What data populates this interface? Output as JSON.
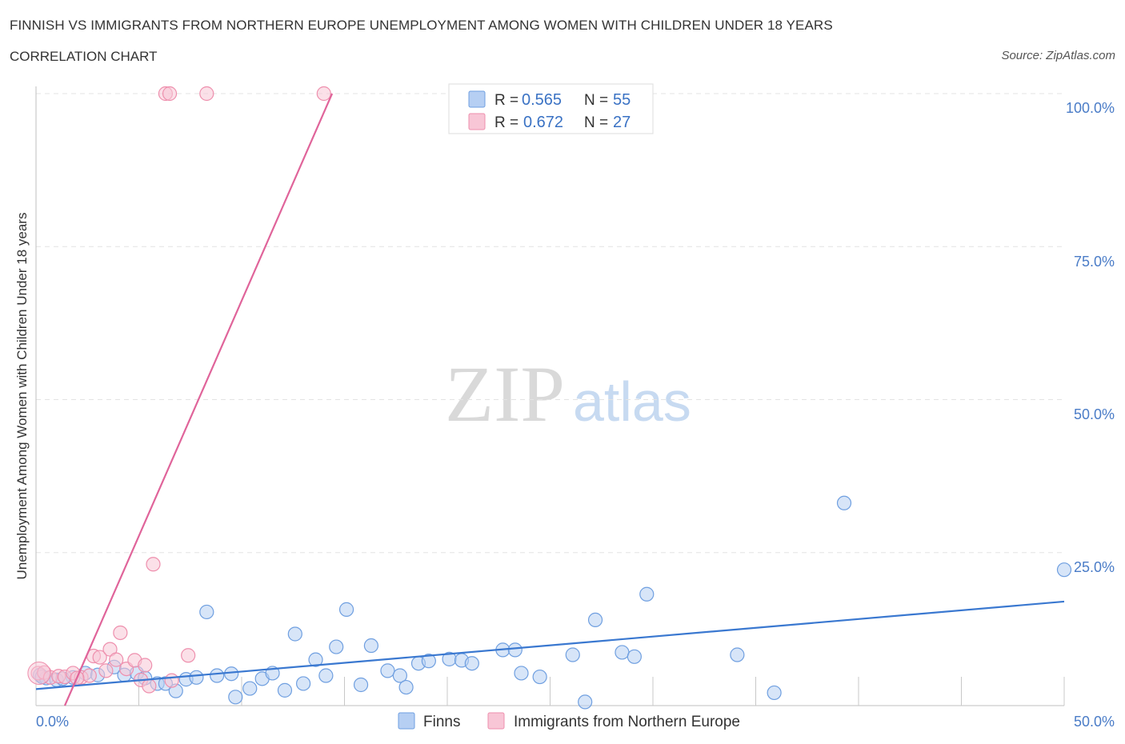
{
  "title": "FINNISH VS IMMIGRANTS FROM NORTHERN EUROPE UNEMPLOYMENT AMONG WOMEN WITH CHILDREN UNDER 18 YEARS",
  "subtitle": "CORRELATION CHART",
  "source": "Source: ZipAtlas.com",
  "watermark": {
    "zip": "ZIP",
    "atlas": "atlas"
  },
  "colors": {
    "finns": "#6f9fe0",
    "finns_line": "#3a78d0",
    "immigrants": "#ee8fad",
    "immigrants_line": "#e0649a",
    "tick": "#4a7cc7"
  },
  "legend": {
    "r_label": "R =",
    "n_label": "N =",
    "finns": {
      "r": "0.565",
      "n": "55"
    },
    "immigrants": {
      "r": "0.672",
      "n": "27"
    }
  },
  "chart_data": {
    "type": "scatter",
    "title": "FINNISH VS IMMIGRANTS FROM NORTHERN EUROPE UNEMPLOYMENT AMONG WOMEN WITH CHILDREN UNDER 18 YEARS",
    "xlabel": "",
    "ylabel": "Unemployment Among Women with Children Under 18 years",
    "xlim": [
      0,
      50
    ],
    "ylim": [
      0,
      100
    ],
    "x_tick_labels": [
      "0.0%",
      "50.0%"
    ],
    "y_tick_labels": [
      "100.0%",
      "75.0%",
      "50.0%",
      "25.0%"
    ],
    "y_ticks": [
      100,
      75,
      50,
      25
    ],
    "series": [
      {
        "name": "Finns",
        "points": [
          [
            0.2,
            5.0
          ],
          [
            0.5,
            4.5
          ],
          [
            1.0,
            4.2
          ],
          [
            1.8,
            4.6
          ],
          [
            2.4,
            5.3
          ],
          [
            3.0,
            5.0
          ],
          [
            3.8,
            6.3
          ],
          [
            4.3,
            5.0
          ],
          [
            4.9,
            5.3
          ],
          [
            5.3,
            4.5
          ],
          [
            5.9,
            3.6
          ],
          [
            6.3,
            3.6
          ],
          [
            6.8,
            2.4
          ],
          [
            7.3,
            4.3
          ],
          [
            7.8,
            4.6
          ],
          [
            8.3,
            15.3
          ],
          [
            8.8,
            4.9
          ],
          [
            9.5,
            5.2
          ],
          [
            9.7,
            1.4
          ],
          [
            10.4,
            2.8
          ],
          [
            11.0,
            4.4
          ],
          [
            11.5,
            5.3
          ],
          [
            12.1,
            2.5
          ],
          [
            12.6,
            11.7
          ],
          [
            13.0,
            3.6
          ],
          [
            13.6,
            7.5
          ],
          [
            14.1,
            4.9
          ],
          [
            14.6,
            9.6
          ],
          [
            15.1,
            15.7
          ],
          [
            15.8,
            3.4
          ],
          [
            16.3,
            9.8
          ],
          [
            17.1,
            5.7
          ],
          [
            17.7,
            4.9
          ],
          [
            18.0,
            3.0
          ],
          [
            18.6,
            6.9
          ],
          [
            19.1,
            7.3
          ],
          [
            20.1,
            7.6
          ],
          [
            20.7,
            7.4
          ],
          [
            21.2,
            6.9
          ],
          [
            22.7,
            9.1
          ],
          [
            23.3,
            9.1
          ],
          [
            23.6,
            5.3
          ],
          [
            24.5,
            4.7
          ],
          [
            26.1,
            8.3
          ],
          [
            26.7,
            0.6
          ],
          [
            27.2,
            14.0
          ],
          [
            28.5,
            8.7
          ],
          [
            29.1,
            8.0
          ],
          [
            29.7,
            18.2
          ],
          [
            34.1,
            8.3
          ],
          [
            35.9,
            2.1
          ],
          [
            39.3,
            33.1
          ],
          [
            50.0,
            22.2
          ],
          [
            0.3,
            4.7
          ],
          [
            1.3,
            4.4
          ]
        ],
        "regression": {
          "x": [
            0,
            50
          ],
          "y": [
            2.7,
            17.0
          ]
        }
      },
      {
        "name": "Immigrants from Northern Europe",
        "points": [
          [
            0.1,
            5.3
          ],
          [
            0.4,
            5.4
          ],
          [
            0.7,
            4.6
          ],
          [
            1.1,
            4.8
          ],
          [
            1.4,
            4.7
          ],
          [
            1.8,
            5.3
          ],
          [
            2.2,
            4.6
          ],
          [
            2.6,
            4.9
          ],
          [
            2.8,
            8.1
          ],
          [
            3.1,
            7.9
          ],
          [
            3.4,
            5.7
          ],
          [
            3.6,
            9.2
          ],
          [
            3.9,
            7.5
          ],
          [
            4.1,
            11.9
          ],
          [
            4.4,
            6.0
          ],
          [
            4.8,
            7.4
          ],
          [
            5.1,
            4.2
          ],
          [
            5.3,
            6.6
          ],
          [
            5.5,
            3.2
          ],
          [
            5.7,
            23.1
          ],
          [
            6.3,
            100.0
          ],
          [
            6.5,
            100.0
          ],
          [
            8.3,
            100.0
          ],
          [
            14.0,
            100.0
          ],
          [
            6.6,
            4.1
          ],
          [
            7.4,
            8.2
          ],
          [
            2.0,
            4.5
          ]
        ],
        "regression": {
          "x": [
            1.4,
            14.4
          ],
          "y": [
            0,
            100
          ]
        }
      }
    ]
  }
}
